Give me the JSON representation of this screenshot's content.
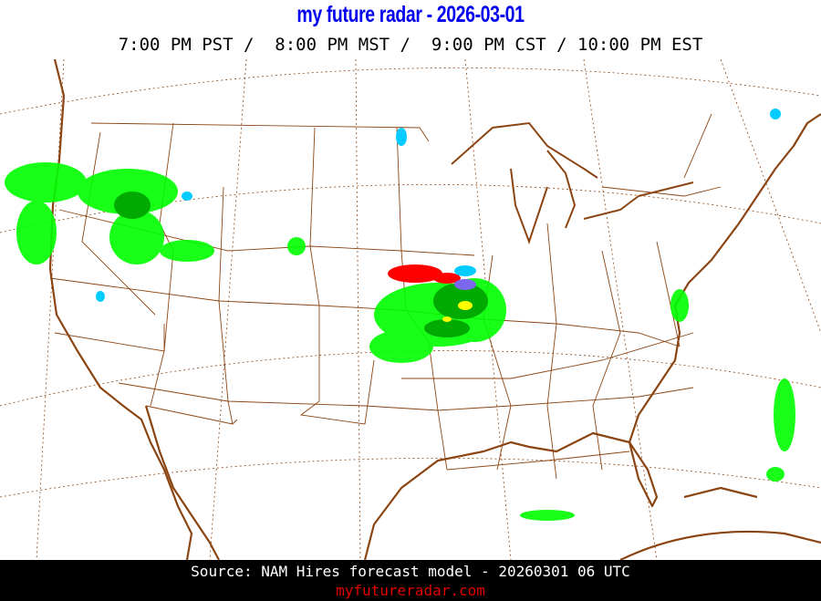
{
  "header": {
    "title": "my future radar - 2026-03-01",
    "times": "7:00 PM PST /  8:00 PM MST /  9:00 PM CST / 10:00 PM EST"
  },
  "map": {
    "coastline_color": "#8b4513",
    "border_color": "#8b4513",
    "gridline_style": "dotted",
    "radar_colors": {
      "light": "#00ff00",
      "moderate": "#00aa00",
      "heavy": "#ffff00",
      "snow": "#00ccff",
      "mix": "#7b68ee",
      "ice": "#ff0000"
    }
  },
  "footer": {
    "source": "Source: NAM Hires forecast model - 20260301 06 UTC",
    "site": "myfutureradar.com"
  }
}
